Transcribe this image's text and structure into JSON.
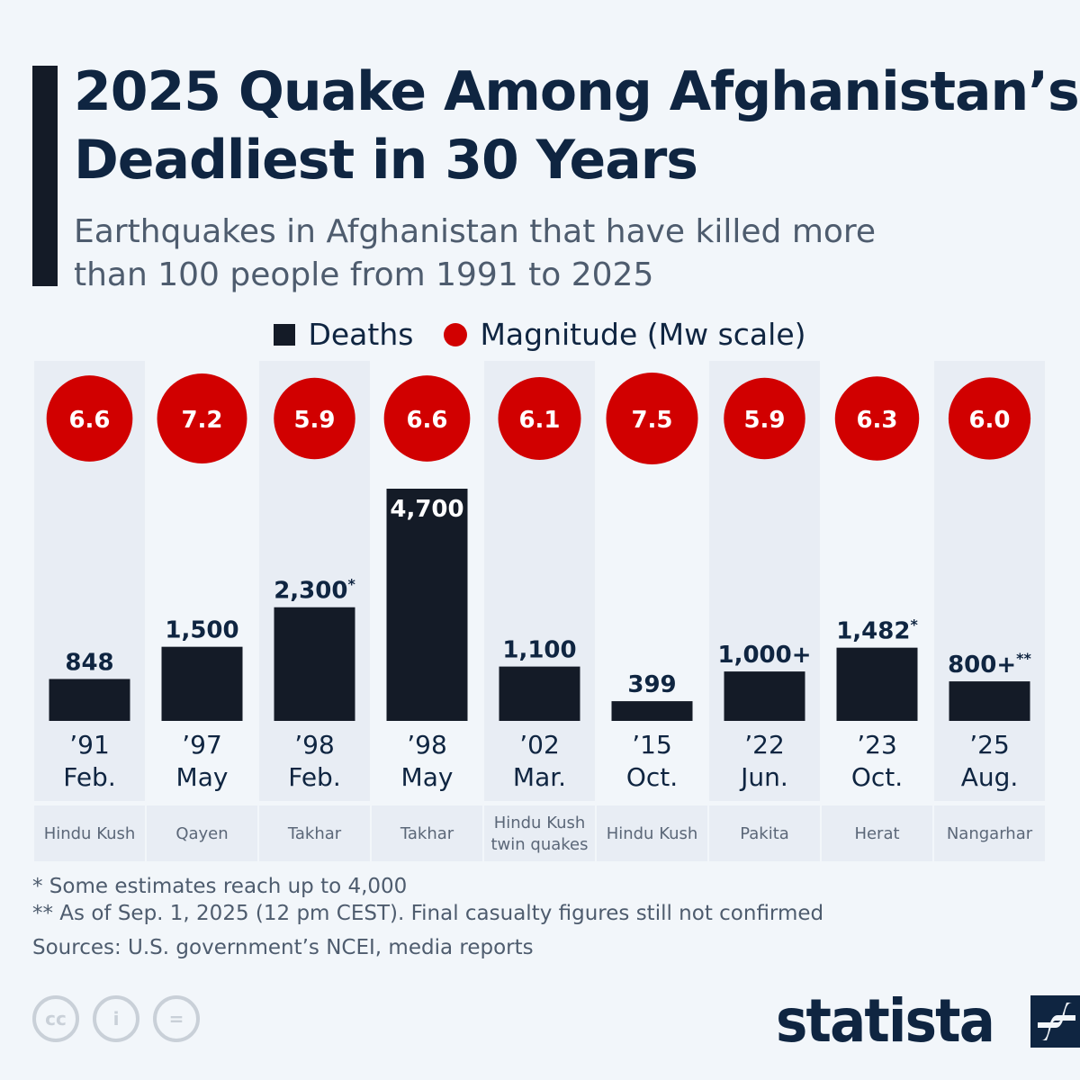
{
  "title": "2025 Quake Among Afghanistan’s Deadliest in 30 Years",
  "subtitle": "Earthquakes in Afghanistan that have killed more than 100 people from 1991 to 2025",
  "legend": {
    "deaths": "Deaths",
    "magnitude": "Magnitude (Mw scale)"
  },
  "colors": {
    "bar": "#141b27",
    "circle": "#d10000",
    "title": "#0f2541",
    "shade": "#e8edf4"
  },
  "chart_data": {
    "type": "bar",
    "categories": [
      {
        "year": "’91",
        "month": "Feb.",
        "region": "Hindu Kush"
      },
      {
        "year": "’97",
        "month": "May",
        "region": "Qayen"
      },
      {
        "year": "’98",
        "month": "Feb.",
        "region": "Takhar"
      },
      {
        "year": "’98",
        "month": "May",
        "region": "Takhar"
      },
      {
        "year": "’02",
        "month": "Mar.",
        "region": "Hindu Kush twin quakes"
      },
      {
        "year": "’15",
        "month": "Oct.",
        "region": "Hindu Kush"
      },
      {
        "year": "’22",
        "month": "Jun.",
        "region": "Pakita"
      },
      {
        "year": "’23",
        "month": "Oct.",
        "region": "Herat"
      },
      {
        "year": "’25",
        "month": "Aug.",
        "region": "Nangarhar"
      }
    ],
    "series": [
      {
        "name": "Deaths",
        "values": [
          848,
          1500,
          2300,
          4700,
          1100,
          399,
          1000,
          1482,
          800
        ],
        "labels": [
          "848",
          "1,500",
          "2,300",
          "4,700",
          "1,100",
          "399",
          "1,000+",
          "1,482",
          "800+"
        ],
        "marks": [
          "",
          "",
          "*",
          "",
          "",
          "",
          "",
          "*",
          "**"
        ]
      },
      {
        "name": "Magnitude (Mw scale)",
        "values": [
          6.6,
          7.2,
          5.9,
          6.6,
          6.1,
          7.5,
          5.9,
          6.3,
          6.0
        ],
        "labels": [
          "6.6",
          "7.2",
          "5.9",
          "6.6",
          "6.1",
          "7.5",
          "5.9",
          "6.3",
          "6.0"
        ]
      }
    ]
  },
  "notes": [
    "*   Some estimates reach up to 4,000",
    "** As of Sep. 1, 2025 (12 pm CEST). Final casualty figures still not confirmed"
  ],
  "source": "Sources: U.S. government’s NCEI, media reports",
  "license_icons": [
    "cc-icon",
    "attribution-icon",
    "no-derivatives-icon"
  ],
  "logo": "statista"
}
